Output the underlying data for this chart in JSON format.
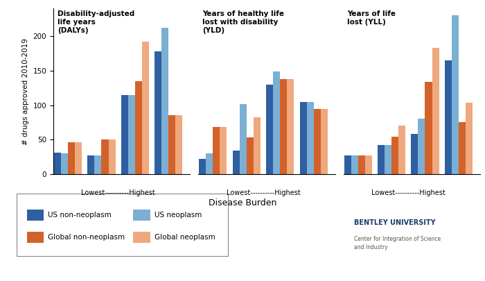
{
  "groups": [
    "DALYs",
    "YLD",
    "YLL"
  ],
  "group_labels": [
    "Disability-adjusted\nlife years\n(DALYs)",
    "Years of healthy life\nlost with disability\n(YLD)",
    "Years of life\nlost (YLL)"
  ],
  "series": {
    "US non-neoplasm": {
      "color": "#2E5FA3",
      "DALYs": [
        31,
        27,
        115,
        178
      ],
      "YLD": [
        22,
        34,
        130,
        105
      ],
      "YLL": [
        27,
        42,
        58,
        165
      ]
    },
    "US neoplasm": {
      "color": "#7BAFD4",
      "DALYs": [
        30,
        27,
        115,
        212
      ],
      "YLD": [
        30,
        102,
        149,
        105
      ],
      "YLL": [
        27,
        42,
        80,
        230
      ]
    },
    "Global non-neoplasm": {
      "color": "#D2622A",
      "DALYs": [
        46,
        50,
        135,
        85
      ],
      "YLD": [
        68,
        53,
        138,
        95
      ],
      "YLL": [
        27,
        54,
        134,
        75
      ]
    },
    "Global neoplasm": {
      "color": "#F0A87E",
      "DALYs": [
        46,
        50,
        192,
        85
      ],
      "YLD": [
        68,
        82,
        138,
        95
      ],
      "YLL": [
        27,
        70,
        183,
        104
      ]
    }
  },
  "series_order": [
    "US non-neoplasm",
    "US neoplasm",
    "Global non-neoplasm",
    "Global neoplasm"
  ],
  "ylabel": "# drugs approved 2010-2019",
  "xlabel": "Disease Burden",
  "xlabels": [
    "Lowest----------Highest",
    "Lowest----------Highest",
    "Lowest----------Highest"
  ],
  "ylim": [
    0,
    240
  ],
  "yticks": [
    0,
    50,
    100,
    150,
    200
  ],
  "background_color": "#FFFFFF",
  "legend": [
    [
      "US non-neoplasm",
      "US neoplasm"
    ],
    [
      "Global non-neoplasm",
      "Global neoplasm"
    ]
  ]
}
